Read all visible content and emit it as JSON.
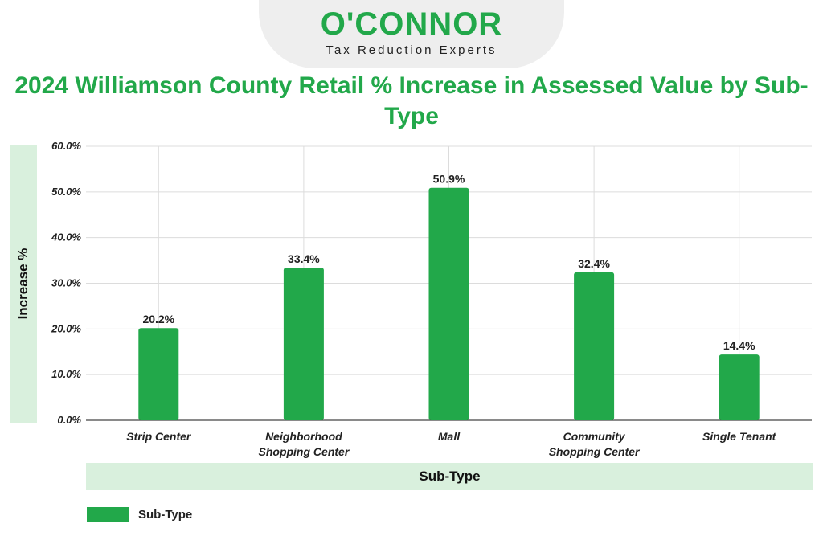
{
  "brand": {
    "name": "O'CONNOR",
    "tagline": "Tax Reduction Experts",
    "color": "#22a84a"
  },
  "chart_data": {
    "type": "bar",
    "title": "2024 Williamson County Retail % Increase in Assessed Value by Sub-Type",
    "xlabel": "Sub-Type",
    "ylabel": "Increase %",
    "categories": [
      [
        "Strip Center"
      ],
      [
        "Neighborhood",
        "Shopping Center"
      ],
      [
        "Mall"
      ],
      [
        "Community",
        "Shopping Center"
      ],
      [
        "Single Tenant"
      ]
    ],
    "series": [
      {
        "name": "Sub-Type",
        "values": [
          20.2,
          33.4,
          50.9,
          32.4,
          14.4
        ],
        "value_labels": [
          "20.2%",
          "33.4%",
          "50.9%",
          "32.4%",
          "14.4%"
        ],
        "color": "#22a84a"
      }
    ],
    "ylim": [
      0,
      60
    ],
    "yticks": [
      "0.0%",
      "10.0%",
      "20.0%",
      "30.0%",
      "40.0%",
      "50.0%",
      "60.0%"
    ],
    "grid": true,
    "legend_position": "bottom-left"
  }
}
